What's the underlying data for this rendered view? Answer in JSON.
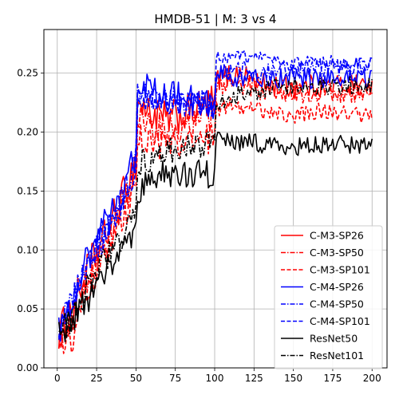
{
  "chart_data": {
    "type": "line",
    "title": "HMDB-51 | M: 3 vs 4",
    "xlabel": "",
    "ylabel": "",
    "xlim": [
      -8.5,
      209.5
    ],
    "ylim": [
      0,
      0.287
    ],
    "xticks": [
      0,
      25,
      50,
      75,
      100,
      125,
      150,
      175,
      200
    ],
    "yticks": [
      0.0,
      0.05,
      0.1,
      0.15,
      0.2,
      0.25
    ],
    "xtick_labels": [
      "0",
      "25",
      "50",
      "75",
      "100",
      "125",
      "150",
      "175",
      "200"
    ],
    "ytick_labels": [
      "0.00",
      "0.05",
      "0.10",
      "0.15",
      "0.20",
      "0.25"
    ],
    "grid": true,
    "legend_position": "lower-right",
    "x_start": 1,
    "x_end": 200,
    "series": [
      {
        "name": "C-M3-SP26",
        "color": "#ff0000",
        "dash": "solid",
        "values": [
          [
            1,
            0.03
          ],
          [
            10,
            0.05
          ],
          [
            20,
            0.085
          ],
          [
            30,
            0.11
          ],
          [
            40,
            0.14
          ],
          [
            50,
            0.175
          ],
          [
            51,
            0.225
          ],
          [
            60,
            0.215
          ],
          [
            70,
            0.21
          ],
          [
            80,
            0.215
          ],
          [
            90,
            0.22
          ],
          [
            100,
            0.225
          ],
          [
            101,
            0.245
          ],
          [
            115,
            0.25
          ],
          [
            130,
            0.24
          ],
          [
            150,
            0.238
          ],
          [
            175,
            0.24
          ],
          [
            200,
            0.24
          ]
        ],
        "noise": 0.01
      },
      {
        "name": "C-M3-SP50",
        "color": "#ff0000",
        "dash": "dashdot",
        "values": [
          [
            1,
            0.025
          ],
          [
            10,
            0.045
          ],
          [
            20,
            0.08
          ],
          [
            30,
            0.1
          ],
          [
            40,
            0.13
          ],
          [
            50,
            0.16
          ],
          [
            51,
            0.215
          ],
          [
            60,
            0.205
          ],
          [
            70,
            0.2
          ],
          [
            80,
            0.205
          ],
          [
            90,
            0.21
          ],
          [
            100,
            0.215
          ],
          [
            101,
            0.235
          ],
          [
            115,
            0.242
          ],
          [
            130,
            0.236
          ],
          [
            150,
            0.233
          ],
          [
            175,
            0.234
          ],
          [
            200,
            0.233
          ]
        ],
        "noise": 0.009
      },
      {
        "name": "C-M3-SP101",
        "color": "#ff0000",
        "dash": "dashed",
        "values": [
          [
            1,
            0.02
          ],
          [
            10,
            0.025
          ],
          [
            20,
            0.07
          ],
          [
            30,
            0.095
          ],
          [
            40,
            0.12
          ],
          [
            50,
            0.15
          ],
          [
            51,
            0.195
          ],
          [
            60,
            0.19
          ],
          [
            70,
            0.188
          ],
          [
            80,
            0.19
          ],
          [
            90,
            0.192
          ],
          [
            100,
            0.195
          ],
          [
            101,
            0.22
          ],
          [
            115,
            0.222
          ],
          [
            130,
            0.218
          ],
          [
            150,
            0.215
          ],
          [
            175,
            0.218
          ],
          [
            200,
            0.215
          ]
        ],
        "noise": 0.008
      },
      {
        "name": "C-M4-SP26",
        "color": "#0000ff",
        "dash": "solid",
        "values": [
          [
            1,
            0.03
          ],
          [
            10,
            0.06
          ],
          [
            20,
            0.095
          ],
          [
            30,
            0.12
          ],
          [
            40,
            0.145
          ],
          [
            50,
            0.18
          ],
          [
            51,
            0.235
          ],
          [
            60,
            0.235
          ],
          [
            70,
            0.23
          ],
          [
            80,
            0.228
          ],
          [
            90,
            0.228
          ],
          [
            100,
            0.225
          ],
          [
            101,
            0.25
          ],
          [
            115,
            0.245
          ],
          [
            130,
            0.245
          ],
          [
            150,
            0.246
          ],
          [
            175,
            0.245
          ],
          [
            200,
            0.245
          ]
        ],
        "noise": 0.009
      },
      {
        "name": "C-M4-SP50",
        "color": "#0000ff",
        "dash": "dashdot",
        "values": [
          [
            1,
            0.03
          ],
          [
            10,
            0.058
          ],
          [
            20,
            0.09
          ],
          [
            30,
            0.115
          ],
          [
            40,
            0.14
          ],
          [
            50,
            0.175
          ],
          [
            51,
            0.232
          ],
          [
            60,
            0.232
          ],
          [
            70,
            0.228
          ],
          [
            80,
            0.226
          ],
          [
            90,
            0.227
          ],
          [
            100,
            0.224
          ],
          [
            101,
            0.25
          ],
          [
            115,
            0.252
          ],
          [
            130,
            0.252
          ],
          [
            150,
            0.253
          ],
          [
            175,
            0.255
          ],
          [
            200,
            0.256
          ]
        ],
        "noise": 0.008
      },
      {
        "name": "C-M4-SP101",
        "color": "#0000ff",
        "dash": "dashed",
        "values": [
          [
            1,
            0.03
          ],
          [
            10,
            0.055
          ],
          [
            20,
            0.09
          ],
          [
            30,
            0.11
          ],
          [
            40,
            0.135
          ],
          [
            50,
            0.165
          ],
          [
            51,
            0.228
          ],
          [
            60,
            0.228
          ],
          [
            70,
            0.225
          ],
          [
            80,
            0.224
          ],
          [
            90,
            0.225
          ],
          [
            100,
            0.222
          ],
          [
            101,
            0.262
          ],
          [
            115,
            0.266
          ],
          [
            130,
            0.262
          ],
          [
            150,
            0.258
          ],
          [
            175,
            0.259
          ],
          [
            200,
            0.258
          ]
        ],
        "noise": 0.006
      },
      {
        "name": "ResNet50",
        "color": "#000000",
        "dash": "solid",
        "values": [
          [
            1,
            0.03
          ],
          [
            10,
            0.04
          ],
          [
            20,
            0.06
          ],
          [
            30,
            0.08
          ],
          [
            40,
            0.1
          ],
          [
            50,
            0.12
          ],
          [
            51,
            0.15
          ],
          [
            60,
            0.16
          ],
          [
            70,
            0.165
          ],
          [
            80,
            0.165
          ],
          [
            90,
            0.165
          ],
          [
            100,
            0.165
          ],
          [
            101,
            0.195
          ],
          [
            115,
            0.192
          ],
          [
            130,
            0.19
          ],
          [
            150,
            0.188
          ],
          [
            175,
            0.19
          ],
          [
            200,
            0.188
          ]
        ],
        "noise": 0.008
      },
      {
        "name": "ResNet101",
        "color": "#000000",
        "dash": "dashdot",
        "values": [
          [
            1,
            0.028
          ],
          [
            10,
            0.045
          ],
          [
            20,
            0.07
          ],
          [
            30,
            0.09
          ],
          [
            40,
            0.11
          ],
          [
            50,
            0.135
          ],
          [
            51,
            0.17
          ],
          [
            60,
            0.178
          ],
          [
            70,
            0.182
          ],
          [
            80,
            0.185
          ],
          [
            90,
            0.188
          ],
          [
            100,
            0.19
          ],
          [
            101,
            0.225
          ],
          [
            115,
            0.232
          ],
          [
            130,
            0.236
          ],
          [
            150,
            0.238
          ],
          [
            175,
            0.24
          ],
          [
            200,
            0.238
          ]
        ],
        "noise": 0.008
      }
    ]
  }
}
